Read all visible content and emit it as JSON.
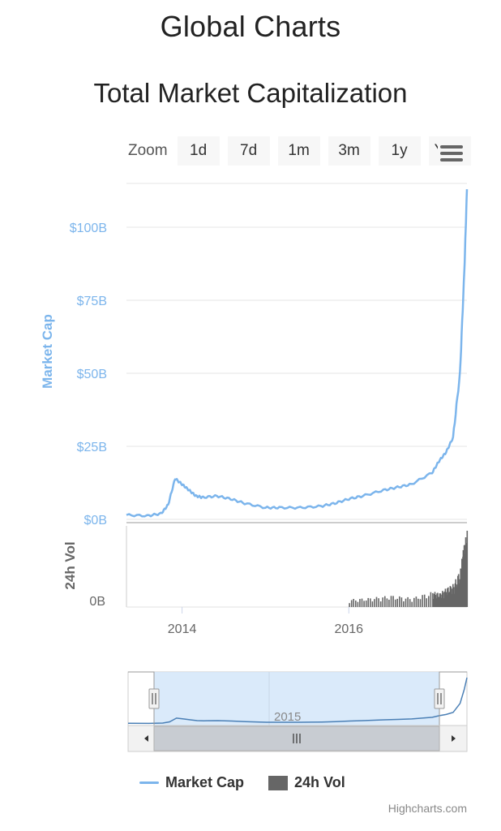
{
  "header": {
    "title": "Global Charts"
  },
  "zoom": {
    "label": "Zoom",
    "buttons": [
      "1d",
      "7d",
      "1m",
      "3m",
      "1y",
      "YTD"
    ]
  },
  "menu_icon": "hamburger-menu-icon",
  "colors": {
    "market_cap": "#7cb5ec",
    "volume": "#666666",
    "navigator_fill": "#d4e6f9",
    "scrollbar": "#c8ccd2"
  },
  "chart_data": {
    "type": "line",
    "title": "Total Market Capitalization",
    "x_type": "datetime",
    "xlim": [
      "2013-05",
      "2017-06"
    ],
    "x_ticks": [
      "2014",
      "2016"
    ],
    "navigator_tick": "2015",
    "panes": [
      {
        "name": "market_cap",
        "ylabel": "Market Cap",
        "ylim": [
          0,
          115
        ],
        "y_ticks": [
          "$0B",
          "$25B",
          "$50B",
          "$75B",
          "$100B"
        ],
        "y_tick_values": [
          0,
          25,
          50,
          75,
          100
        ]
      },
      {
        "name": "volume",
        "ylabel": "24h Vol",
        "y_ticks": [
          "0B"
        ]
      }
    ],
    "series": [
      {
        "name": "Market Cap",
        "type": "line",
        "color": "#7cb5ec",
        "x": [
          "2013-05",
          "2013-08",
          "2013-10",
          "2013-11",
          "2013-12",
          "2014-01",
          "2014-02",
          "2014-03",
          "2014-04",
          "2014-06",
          "2014-08",
          "2014-10",
          "2015-01",
          "2015-03",
          "2015-06",
          "2015-09",
          "2015-11",
          "2016-01",
          "2016-03",
          "2016-06",
          "2016-08",
          "2016-10",
          "2017-01",
          "2017-02",
          "2017-03",
          "2017-04",
          "2017-05",
          "2017-05-20",
          "2017-06"
        ],
        "values": [
          1.5,
          1.2,
          2.0,
          5.0,
          14.0,
          12.0,
          10.0,
          8.0,
          7.5,
          8.0,
          7.0,
          5.5,
          4.0,
          4.0,
          4.0,
          4.5,
          5.5,
          7.0,
          8.0,
          10.0,
          11.0,
          12.0,
          16.0,
          20.0,
          23.0,
          28.0,
          50.0,
          85.0,
          113.0
        ]
      },
      {
        "name": "24h Vol",
        "type": "column",
        "color": "#666666",
        "x": [
          "2016-01",
          "2016-04",
          "2016-07",
          "2016-10",
          "2017-01",
          "2017-02",
          "2017-03",
          "2017-04",
          "2017-05",
          "2017-05-15",
          "2017-06"
        ],
        "values": [
          0.1,
          0.12,
          0.15,
          0.12,
          0.2,
          0.18,
          0.25,
          0.3,
          0.5,
          0.8,
          1.0
        ]
      }
    ],
    "legend": {
      "placement": "bottom",
      "entries": [
        "Market Cap",
        "24h Vol"
      ]
    },
    "credit": "Highcharts.com"
  }
}
